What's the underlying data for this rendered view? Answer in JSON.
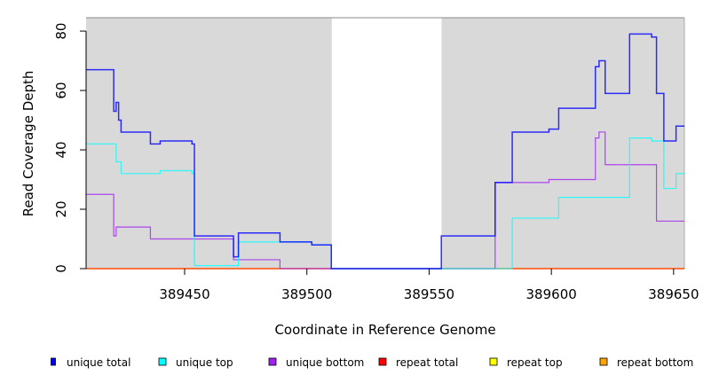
{
  "chart_data": {
    "type": "line",
    "step": true,
    "title": "",
    "xlabel": "Coordinate in Reference Genome",
    "ylabel": "Read Coverage Depth",
    "xlim": [
      389409.7,
      389654.4
    ],
    "ylim": [
      0,
      84.5
    ],
    "xticks": [
      389450,
      389500,
      389550,
      389600,
      389650
    ],
    "yticks": [
      0,
      20,
      40,
      60,
      80
    ],
    "shaded_regions": [
      [
        389409.7,
        389510.2
      ],
      [
        389555.1,
        389654.4
      ]
    ],
    "legend_position": "bottom",
    "series": [
      {
        "name": "unique total",
        "color": "#0000ff",
        "x": [
          389409.7,
          389421,
          389422,
          389423,
          389424,
          389436,
          389440,
          389453,
          389454,
          389470,
          389472,
          389489,
          389502,
          389510,
          389555,
          389577,
          389584,
          389599,
          389603,
          389618,
          389619.5,
          389622,
          389632,
          389641,
          389643,
          389646,
          389651,
          389654.4
        ],
        "y": [
          67,
          53,
          56,
          50,
          46,
          42,
          43,
          42,
          11,
          4,
          12,
          9,
          8,
          0,
          11,
          29,
          46,
          47,
          54,
          68,
          70,
          59,
          79,
          78,
          59,
          43,
          48,
          48
        ]
      },
      {
        "name": "unique top",
        "color": "#00ffff",
        "x": [
          389409.7,
          389422,
          389424,
          389440,
          389453,
          389454,
          389472,
          389502,
          389510,
          389584,
          389603,
          389632,
          389641,
          389646,
          389651,
          389654.4
        ],
        "y": [
          42,
          36,
          32,
          33,
          32,
          1,
          9,
          8,
          0,
          17,
          24,
          44,
          43,
          27,
          32,
          32
        ]
      },
      {
        "name": "unique bottom",
        "color": "#a020f0",
        "x": [
          389409.7,
          389421,
          389422,
          389436,
          389470,
          389489,
          389577,
          389599,
          389618,
          389619.5,
          389622,
          389643,
          389654.4
        ],
        "y": [
          25,
          11,
          14,
          10,
          3,
          0,
          29,
          30,
          44,
          46,
          35,
          16,
          16
        ]
      },
      {
        "name": "repeat total",
        "color": "#ff0000",
        "x": [
          389409.7,
          389654.4
        ],
        "y": [
          0,
          0
        ]
      },
      {
        "name": "repeat top",
        "color": "#ffff00",
        "x": [
          389409.7,
          389654.4
        ],
        "y": [
          0,
          0
        ]
      },
      {
        "name": "repeat bottom",
        "color": "#ffa500",
        "x": [
          389409.7,
          389654.4
        ],
        "y": [
          0,
          0
        ]
      }
    ]
  }
}
